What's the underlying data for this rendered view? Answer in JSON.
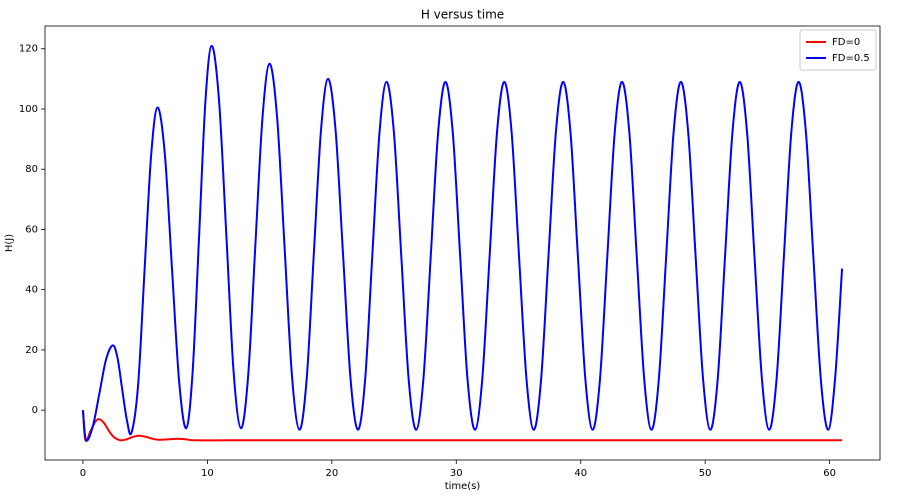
{
  "chart_data": {
    "type": "line",
    "title": "H versus time",
    "xlabel": "time(s)",
    "ylabel": "H(J)",
    "xlim": [
      -3.05,
      64.05
    ],
    "ylim": [
      -16.55,
      127.55
    ],
    "xticks": [
      0,
      10,
      20,
      30,
      40,
      50,
      60
    ],
    "yticks": [
      0,
      20,
      40,
      60,
      80,
      100,
      120
    ],
    "legend": "upper right",
    "series": [
      {
        "name": "FD=0",
        "color": "#ff0000",
        "x": [
          0,
          0.2,
          0.6,
          1.0,
          1.3,
          1.7,
          2.1,
          2.5,
          3.0,
          3.5,
          4.0,
          4.5,
          5.0,
          5.5,
          6.0,
          6.8,
          7.5,
          8.3,
          9.0,
          12,
          20,
          30,
          40,
          50,
          61
        ],
        "values": [
          0,
          -10,
          -7,
          -3.8,
          -3,
          -4.3,
          -7,
          -9,
          -10,
          -9.7,
          -8.9,
          -8.5,
          -8.8,
          -9.4,
          -9.8,
          -9.7,
          -9.5,
          -9.7,
          -10,
          -10,
          -10,
          -10,
          -10,
          -10,
          -10
        ]
      },
      {
        "name": "FD=0.5",
        "color": "#0000ff",
        "x": [
          0,
          0.25,
          0.79,
          1.33,
          1.86,
          2.4,
          2.78,
          3.15,
          3.53,
          3.9,
          4.43,
          4.95,
          5.48,
          6.0,
          6.58,
          7.15,
          7.73,
          8.3,
          8.81,
          9.33,
          9.84,
          10.35,
          10.94,
          11.53,
          12.11,
          12.7,
          13.28,
          13.85,
          14.43,
          15.0,
          15.6,
          16.2,
          16.8,
          17.4,
          17.98,
          18.55,
          19.13,
          19.7,
          20.3,
          20.9,
          21.5,
          22.1,
          22.68,
          23.25,
          23.83,
          24.4,
          24.99,
          25.58,
          26.17,
          26.77,
          27.36,
          27.95,
          28.54,
          29.13,
          29.72,
          30.31,
          30.9,
          31.5,
          32.09,
          32.68,
          33.27,
          33.86,
          34.45,
          35.04,
          35.64,
          36.23,
          36.82,
          37.41,
          38.0,
          38.59,
          39.18,
          39.77,
          40.37,
          40.96,
          41.55,
          42.14,
          42.73,
          43.32,
          43.91,
          44.5,
          45.1,
          45.69,
          46.28,
          46.87,
          47.46,
          48.05,
          48.64,
          49.23,
          49.83,
          50.42,
          51.01,
          51.6,
          52.19,
          52.78,
          53.37,
          53.96,
          54.56,
          55.15,
          55.74,
          56.33,
          56.92,
          57.51,
          58.1,
          58.69,
          59.29,
          59.88,
          60.44,
          61
        ],
        "values": [
          0,
          -10,
          -5.4,
          5.75,
          16.9,
          21.5,
          17.3,
          7,
          -3.3,
          -7.5,
          8.3,
          46.5,
          84.7,
          100.5,
          85,
          47.25,
          9.5,
          -6,
          12.5,
          57.5,
          102.5,
          121,
          102.5,
          57.5,
          12.5,
          -6,
          11.7,
          54.5,
          97.3,
          115,
          97.3,
          54.25,
          11.2,
          -6.5,
          10.5,
          51.75,
          93,
          110,
          93,
          51.75,
          10.5,
          -6.5,
          10.4,
          51.25,
          92.1,
          109,
          92.1,
          51.25,
          10.4,
          -6.5,
          10.4,
          51.25,
          92.1,
          109,
          92.1,
          51.25,
          10.4,
          -6.5,
          10.4,
          51.25,
          92.1,
          109,
          92.1,
          51.25,
          10.4,
          -6.5,
          10.4,
          51.25,
          92.1,
          109,
          92.1,
          51.25,
          10.4,
          -6.5,
          10.4,
          51.25,
          92.1,
          109,
          92.1,
          51.25,
          10.4,
          -6.5,
          10.4,
          51.25,
          92.1,
          109,
          92.1,
          51.25,
          10.4,
          -6.5,
          10.4,
          51.25,
          92.1,
          109,
          92.1,
          51.25,
          10.4,
          -6.5,
          10.4,
          51.25,
          92.1,
          109,
          92.1,
          51.25,
          10.4,
          -6.5,
          10.4,
          47
        ]
      }
    ]
  }
}
